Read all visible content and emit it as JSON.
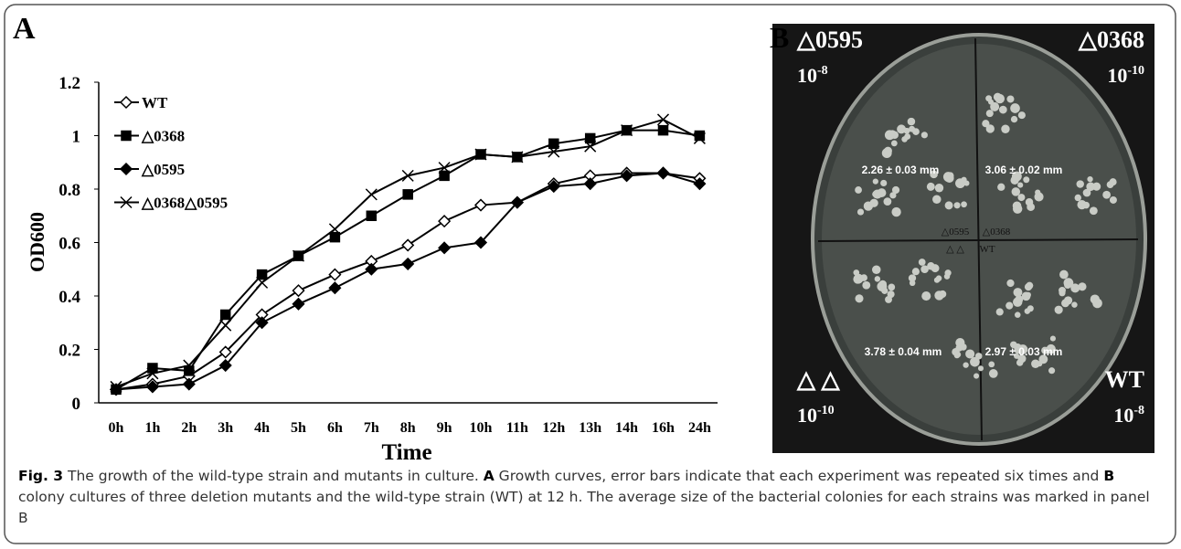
{
  "chart_data": {
    "type": "line",
    "panel_label": "A",
    "categories": [
      "0h",
      "1h",
      "2h",
      "3h",
      "4h",
      "5h",
      "6h",
      "7h",
      "8h",
      "9h",
      "10h",
      "11h",
      "12h",
      "13h",
      "14h",
      "16h",
      "24h"
    ],
    "series": [
      {
        "name": "WT",
        "color": "#000000",
        "marker": "diamond-open",
        "values": [
          0.05,
          0.07,
          0.1,
          0.19,
          0.33,
          0.42,
          0.48,
          0.53,
          0.59,
          0.68,
          0.74,
          0.75,
          0.82,
          0.85,
          0.86,
          0.86,
          0.84
        ]
      },
      {
        "name": "△0368",
        "color": "#000000",
        "marker": "square",
        "values": [
          0.05,
          0.13,
          0.12,
          0.33,
          0.48,
          0.55,
          0.62,
          0.7,
          0.78,
          0.85,
          0.93,
          0.92,
          0.97,
          0.99,
          1.02,
          1.02,
          1.0
        ]
      },
      {
        "name": "△0595",
        "color": "#000000",
        "marker": "diamond",
        "values": [
          0.05,
          0.06,
          0.07,
          0.14,
          0.3,
          0.37,
          0.43,
          0.5,
          0.52,
          0.58,
          0.6,
          0.75,
          0.81,
          0.82,
          0.85,
          0.86,
          0.82
        ]
      },
      {
        "name": "△0368△0595",
        "color": "#000000",
        "marker": "x",
        "values": [
          0.06,
          0.11,
          0.14,
          0.29,
          0.45,
          0.55,
          0.65,
          0.78,
          0.85,
          0.88,
          0.93,
          0.92,
          0.94,
          0.96,
          1.02,
          1.06,
          0.99
        ]
      }
    ],
    "ylim": [
      0,
      1.2
    ],
    "yticks": [
      0,
      0.2,
      0.4,
      0.6,
      0.8,
      1,
      1.2
    ],
    "y_label": "OD600",
    "x_label": "Time",
    "legend": "top-left"
  },
  "panel_b": {
    "panel_label": "B",
    "quadrants": [
      {
        "strain": "△0595",
        "base": "10",
        "exp": "-8",
        "size": "2.26 ± 0.03 mm"
      },
      {
        "strain": "△0368",
        "base": "10",
        "exp": "-10",
        "size": "3.06 ± 0.02 mm"
      },
      {
        "strain": "△ △",
        "base": "10",
        "exp": "-10",
        "size": "3.78 ± 0.04 mm"
      },
      {
        "strain": "WT",
        "base": "10",
        "exp": "-8",
        "size": "2.97 ± 0.03 mm"
      }
    ],
    "center_labels": [
      "△0595",
      "△0368",
      "△ △",
      "WT"
    ]
  },
  "caption": {
    "label": "Fig. 3",
    "parts": [
      "The growth of the wild-type strain and mutants in culture. ",
      "A",
      " Growth curves, error bars indicate that each experiment was repeated six times and ",
      "B",
      " colony cultures of three deletion mutants and the wild-type strain (WT) at 12 h. The average size of the bacterial colonies for each strains was marked in panel B"
    ]
  }
}
